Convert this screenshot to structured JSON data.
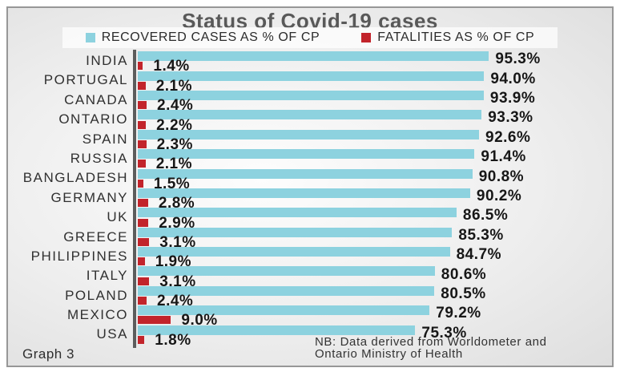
{
  "chart_data": {
    "type": "bar",
    "orientation": "horizontal",
    "title": "Status of Covid-19 cases",
    "xlim": [
      0,
      100
    ],
    "grid": false,
    "legend_position": "top",
    "value_label_format": "{value}%",
    "categories": [
      "INDIA",
      "PORTUGAL",
      "CANADA",
      "ONTARIO",
      "SPAIN",
      "RUSSIA",
      "BANGLADESH",
      "GERMANY",
      "UK",
      "GREECE",
      "PHILIPPINES",
      "ITALY",
      "POLAND",
      "MEXICO",
      "USA"
    ],
    "series": [
      {
        "name": "RECOVERED CASES AS % OF CP",
        "color": "#8DD2DF",
        "values": [
          95.3,
          94.0,
          93.9,
          93.3,
          92.6,
          91.4,
          90.8,
          90.2,
          86.5,
          85.3,
          84.7,
          80.6,
          80.5,
          79.2,
          75.3
        ]
      },
      {
        "name": "FATALITIES AS % OF CP",
        "color": "#C2242B",
        "values": [
          1.4,
          2.1,
          2.4,
          2.2,
          2.3,
          2.1,
          1.5,
          2.8,
          2.9,
          3.1,
          1.9,
          3.1,
          2.4,
          9.0,
          1.8
        ]
      }
    ]
  },
  "footer": {
    "graph_label": "Graph 3",
    "note_line1": "NB: Data derived from Worldometer and",
    "note_line2": "Ontario Ministry of Health"
  },
  "colors": {
    "title_text": "#595959",
    "frame_border": "#979797",
    "axis_line": "#5C5C5C"
  }
}
